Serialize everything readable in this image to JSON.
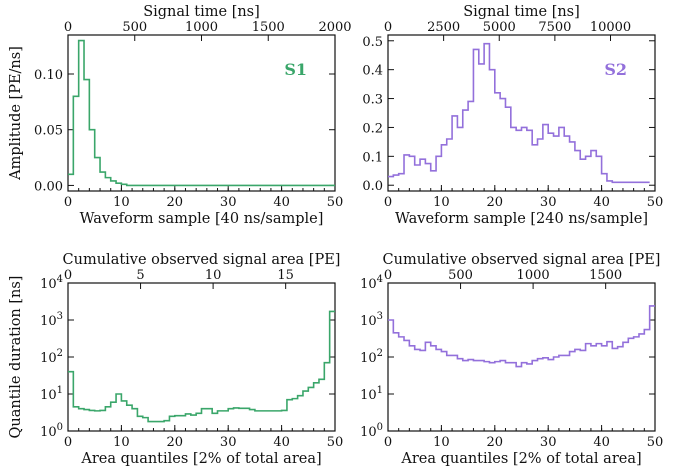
{
  "colors": {
    "s1": "#3aa66a",
    "s2": "#9370db"
  },
  "chart_data": [
    {
      "type": "line",
      "step": true,
      "panel_label": "S1",
      "xlabel": "Waveform sample [40 ns/sample]",
      "ylabel": "Amplitude [PE/ns]",
      "top_xlabel": "Signal time [ns]",
      "xlim": [
        0,
        50
      ],
      "ylim": [
        -0.005,
        0.135
      ],
      "top_xlim": [
        0,
        2000
      ],
      "xticks": [
        "0",
        "10",
        "20",
        "30",
        "40",
        "50"
      ],
      "yticks": [
        "0.00",
        "0.05",
        "0.10"
      ],
      "top_xticks": [
        "0",
        "500",
        "1000",
        "1500",
        "2000"
      ],
      "x": [
        0,
        1,
        2,
        3,
        4,
        5,
        6,
        7,
        8,
        9,
        10,
        11,
        48,
        49
      ],
      "y": [
        0.01,
        0.08,
        0.13,
        0.095,
        0.05,
        0.025,
        0.012,
        0.007,
        0.004,
        0.002,
        0.001,
        0.0,
        0.0,
        0.0
      ],
      "series_color": "#3aa66a"
    },
    {
      "type": "line",
      "step": true,
      "panel_label": "S2",
      "xlabel": "Waveform sample [240 ns/sample]",
      "ylabel": "",
      "top_xlabel": "Signal time [ns]",
      "xlim": [
        0,
        50
      ],
      "ylim": [
        -0.02,
        0.52
      ],
      "top_xlim": [
        0,
        12000
      ],
      "xticks": [
        "0",
        "10",
        "20",
        "30",
        "40",
        "50"
      ],
      "yticks": [
        "0.0",
        "0.1",
        "0.2",
        "0.3",
        "0.4",
        "0.5"
      ],
      "top_xticks": [
        "0",
        "2500",
        "5000",
        "7500",
        "10000"
      ],
      "x": [
        0,
        1,
        2,
        3,
        4,
        5,
        6,
        7,
        8,
        9,
        10,
        11,
        12,
        13,
        14,
        15,
        16,
        17,
        18,
        19,
        20,
        21,
        22,
        23,
        24,
        25,
        26,
        27,
        28,
        29,
        30,
        31,
        32,
        33,
        34,
        35,
        36,
        37,
        38,
        39,
        40,
        41,
        42,
        43,
        44,
        45,
        46,
        47,
        48
      ],
      "y": [
        0.03,
        0.035,
        0.04,
        0.105,
        0.1,
        0.07,
        0.09,
        0.075,
        0.05,
        0.1,
        0.14,
        0.16,
        0.24,
        0.2,
        0.26,
        0.29,
        0.47,
        0.42,
        0.49,
        0.4,
        0.32,
        0.3,
        0.27,
        0.2,
        0.19,
        0.2,
        0.19,
        0.14,
        0.16,
        0.21,
        0.18,
        0.17,
        0.2,
        0.17,
        0.15,
        0.12,
        0.09,
        0.1,
        0.12,
        0.1,
        0.04,
        0.015,
        0.01,
        0.01,
        0.01,
        0.01,
        0.01,
        0.01,
        0.01
      ],
      "series_color": "#9370db"
    },
    {
      "type": "line",
      "step": true,
      "log_y": true,
      "panel_label": "",
      "xlabel": "Area quantiles [2% of total area]",
      "ylabel": "Quantile duration [ns]",
      "top_xlabel": "Cumulative observed signal area [PE]",
      "xlim": [
        0,
        50
      ],
      "ylim": [
        1,
        10000
      ],
      "top_xlim": [
        0,
        18.4
      ],
      "xticks": [
        "0",
        "10",
        "20",
        "30",
        "40",
        "50"
      ],
      "yticks": [
        "10^0",
        "10^1",
        "10^2",
        "10^3",
        "10^4"
      ],
      "top_xticks": [
        "0",
        "5",
        "10",
        "15"
      ],
      "top_xtick_values": [
        0,
        5,
        10,
        15
      ],
      "x": [
        0,
        1,
        2,
        3,
        4,
        5,
        6,
        7,
        8,
        9,
        10,
        11,
        12,
        13,
        14,
        15,
        16,
        17,
        18,
        19,
        20,
        21,
        22,
        23,
        24,
        25,
        26,
        27,
        28,
        29,
        30,
        31,
        32,
        33,
        34,
        35,
        36,
        37,
        38,
        39,
        40,
        41,
        42,
        43,
        44,
        45,
        46,
        47,
        48,
        49
      ],
      "y": [
        40,
        4.5,
        4,
        3.8,
        3.6,
        3.5,
        3.6,
        4.5,
        6,
        10,
        6.5,
        5,
        4,
        2.5,
        2.3,
        1.8,
        1.8,
        1.8,
        1.9,
        2.5,
        2.6,
        2.6,
        2.9,
        2.7,
        3,
        4,
        4,
        3,
        3.5,
        3.5,
        4,
        4.2,
        4.1,
        4.1,
        3.8,
        3.5,
        3.5,
        3.5,
        3.5,
        3.5,
        3.6,
        7,
        7.5,
        9,
        12,
        15,
        20,
        25,
        70,
        1700
      ],
      "series_color": "#3aa66a"
    },
    {
      "type": "line",
      "step": true,
      "log_y": true,
      "panel_label": "",
      "xlabel": "Area quantiles [2% of total area]",
      "ylabel": "",
      "top_xlabel": "Cumulative observed signal area [PE]",
      "xlim": [
        0,
        50
      ],
      "ylim": [
        1,
        10000
      ],
      "top_xlim": [
        0,
        1840
      ],
      "xticks": [
        "0",
        "10",
        "20",
        "30",
        "40",
        "50"
      ],
      "yticks": [
        "10^0",
        "10^1",
        "10^2",
        "10^3",
        "10^4"
      ],
      "top_xticks": [
        "0",
        "500",
        "1000",
        "1500"
      ],
      "top_xtick_values": [
        0,
        500,
        1000,
        1500
      ],
      "x": [
        0,
        1,
        2,
        3,
        4,
        5,
        6,
        7,
        8,
        9,
        10,
        11,
        12,
        13,
        14,
        15,
        16,
        17,
        18,
        19,
        20,
        21,
        22,
        23,
        24,
        25,
        26,
        27,
        28,
        29,
        30,
        31,
        32,
        33,
        34,
        35,
        36,
        37,
        38,
        39,
        40,
        41,
        42,
        43,
        44,
        45,
        46,
        47,
        48,
        49
      ],
      "y": [
        1000,
        450,
        350,
        280,
        200,
        160,
        150,
        250,
        200,
        160,
        140,
        110,
        110,
        90,
        80,
        85,
        80,
        80,
        75,
        70,
        75,
        80,
        70,
        70,
        55,
        70,
        65,
        80,
        90,
        95,
        85,
        100,
        110,
        110,
        140,
        160,
        150,
        230,
        200,
        230,
        200,
        260,
        170,
        190,
        250,
        320,
        350,
        420,
        550,
        2400
      ],
      "series_color": "#9370db"
    }
  ]
}
